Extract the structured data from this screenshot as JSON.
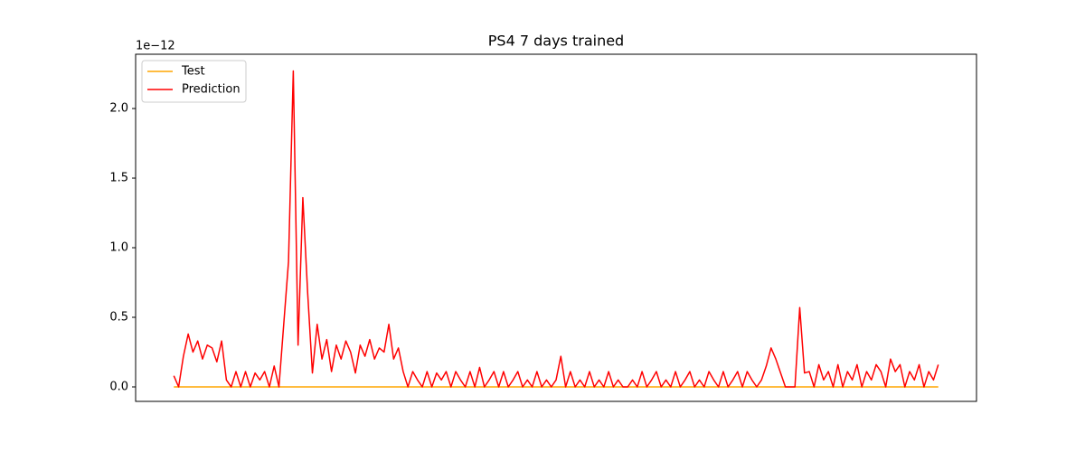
{
  "chart_data": {
    "type": "line",
    "title": "PS4 7 days trained",
    "y_offset_label": "1e−12",
    "ylim": [
      -0.104,
      2.39
    ],
    "yticks": [
      {
        "value": 0,
        "label": "0.0"
      },
      {
        "value": 0.5,
        "label": "0.5"
      },
      {
        "value": 1,
        "label": "1.0"
      },
      {
        "value": 1.5,
        "label": "1.5"
      },
      {
        "value": 2,
        "label": "2.0"
      }
    ],
    "grid": false,
    "legend": "upper-left",
    "series": [
      {
        "name": "Test",
        "color": "#ffa500",
        "values": [
          0,
          0,
          0,
          0,
          0,
          0,
          0,
          0,
          0,
          0,
          0,
          0,
          0,
          0,
          0,
          0,
          0,
          0,
          0,
          0,
          0,
          0,
          0,
          0,
          0,
          0,
          0,
          0,
          0,
          0,
          0,
          0,
          0,
          0,
          0,
          0,
          0,
          0,
          0,
          0,
          0,
          0,
          0,
          0,
          0,
          0,
          0,
          0,
          0,
          0,
          0,
          0,
          0,
          0,
          0,
          0,
          0,
          0,
          0,
          0,
          0,
          0,
          0,
          0,
          0,
          0,
          0,
          0,
          0,
          0,
          0,
          0,
          0,
          0,
          0,
          0,
          0,
          0,
          0,
          0,
          0,
          0,
          0,
          0,
          0,
          0,
          0,
          0,
          0,
          0,
          0,
          0,
          0,
          0,
          0,
          0,
          0,
          0,
          0,
          0,
          0,
          0,
          0,
          0,
          0,
          0,
          0,
          0,
          0,
          0,
          0,
          0,
          0,
          0,
          0,
          0,
          0,
          0,
          0,
          0,
          0,
          0,
          0,
          0,
          0,
          0,
          0,
          0,
          0,
          0,
          0,
          0,
          0,
          0,
          0,
          0,
          0,
          0,
          0,
          0,
          0,
          0,
          0,
          0,
          0,
          0,
          0,
          0,
          0,
          0,
          0,
          0,
          0,
          0,
          0,
          0,
          0,
          0,
          0,
          0,
          0
        ]
      },
      {
        "name": "Prediction",
        "color": "#ff0000",
        "values": [
          0.08,
          0,
          0.22,
          0.38,
          0.25,
          0.33,
          0.2,
          0.3,
          0.28,
          0.18,
          0.33,
          0.05,
          0,
          0.11,
          0,
          0.11,
          0,
          0.1,
          0.05,
          0.11,
          0,
          0.15,
          0,
          0.45,
          0.9,
          2.27,
          0.3,
          1.36,
          0.68,
          0.1,
          0.45,
          0.2,
          0.34,
          0.11,
          0.3,
          0.2,
          0.33,
          0.25,
          0.1,
          0.3,
          0.22,
          0.34,
          0.2,
          0.28,
          0.25,
          0.45,
          0.2,
          0.28,
          0.11,
          0,
          0.11,
          0.05,
          0,
          0.11,
          0,
          0.1,
          0.05,
          0.11,
          0,
          0.11,
          0.05,
          0,
          0.11,
          0,
          0.14,
          0,
          0.05,
          0.11,
          0,
          0.11,
          0,
          0.05,
          0.11,
          0,
          0.05,
          0,
          0.11,
          0,
          0.05,
          0,
          0.05,
          0.22,
          0,
          0.11,
          0,
          0.05,
          0,
          0.11,
          0,
          0.05,
          0,
          0.11,
          0,
          0.05,
          0,
          0,
          0.05,
          0,
          0.11,
          0,
          0.05,
          0.11,
          0,
          0.05,
          0,
          0.11,
          0,
          0.05,
          0.11,
          0,
          0.05,
          0,
          0.11,
          0.05,
          0,
          0.11,
          0,
          0.05,
          0.11,
          0,
          0.11,
          0.05,
          0,
          0.05,
          0.15,
          0.28,
          0.2,
          0.1,
          0,
          0,
          0,
          0.57,
          0.1,
          0.11,
          0,
          0.16,
          0.05,
          0.11,
          0,
          0.16,
          0,
          0.11,
          0.05,
          0.16,
          0,
          0.11,
          0.05,
          0.16,
          0.11,
          0,
          0.2,
          0.11,
          0.16,
          0,
          0.11,
          0.05,
          0.16,
          0,
          0.11,
          0.05,
          0.16
        ]
      }
    ]
  }
}
